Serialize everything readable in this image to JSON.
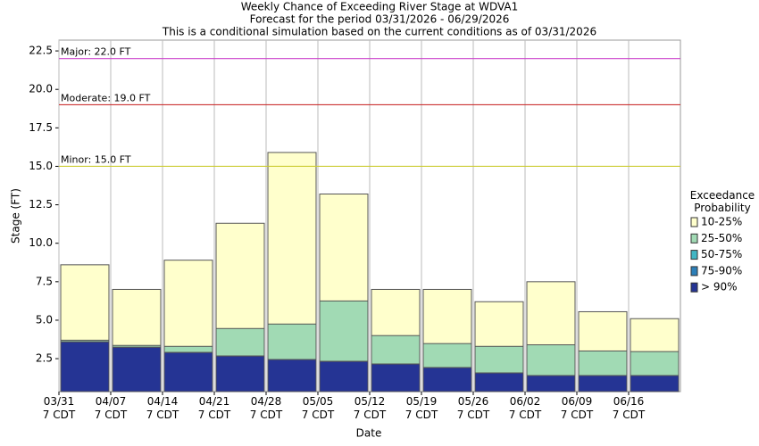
{
  "chart_data": {
    "type": "bar",
    "title": [
      "Weekly Chance of Exceeding River Stage at WDVA1",
      "Forecast for the period 03/31/2026 - 06/29/2026",
      "This is a conditional simulation based on the current conditions as of 03/31/2026"
    ],
    "y_label": "Stage (FT)",
    "x_label": "Date",
    "categories": [
      "03/31\n7 CDT",
      "04/07\n7 CDT",
      "04/14\n7 CDT",
      "04/21\n7 CDT",
      "04/28\n7 CDT",
      "05/05\n7 CDT",
      "05/12\n7 CDT",
      "05/19\n7 CDT",
      "05/26\n7 CDT",
      "06/02\n7 CDT",
      "06/09\n7 CDT",
      "06/16\n7 CDT"
    ],
    "legend_title": "Exceedance\nProbability",
    "legend": "right",
    "grid": true,
    "series": [
      {
        "name": "10-25%",
        "color": "#ffffcc",
        "values": [
          8.6,
          7.0,
          8.9,
          11.3,
          15.9,
          13.2,
          7.0,
          7.0,
          6.2,
          7.5,
          5.55,
          5.1
        ]
      },
      {
        "name": "25-50%",
        "color": "#a1dab4",
        "values": [
          3.7,
          3.36,
          3.3,
          4.46,
          4.75,
          6.25,
          4.0,
          3.48,
          3.3,
          3.4,
          3.0,
          2.96
        ]
      },
      {
        "name": "50-75%",
        "color": "#41b6c4",
        "values": [
          3.59,
          3.24,
          2.9,
          2.67,
          2.44,
          2.32,
          2.15,
          1.92,
          1.57,
          1.4,
          1.4,
          1.4
        ]
      },
      {
        "name": "75-90%",
        "color": "#2c7fb8",
        "values": [
          3.59,
          3.24,
          2.9,
          2.67,
          2.44,
          2.32,
          2.15,
          1.92,
          1.57,
          1.4,
          1.4,
          1.4
        ]
      },
      {
        "name": "> 90%",
        "color": "#253494",
        "values": [
          3.59,
          3.24,
          2.9,
          2.67,
          2.44,
          2.32,
          2.15,
          1.92,
          1.57,
          1.4,
          1.4,
          1.4
        ]
      }
    ],
    "thresholds": [
      {
        "label": "Major: 22.0 FT",
        "value": 22,
        "color": "#cc44cc"
      },
      {
        "label": "Moderate: 19.0 FT",
        "value": 19,
        "color": "#cc3333"
      },
      {
        "label": "Minor: 15.0 FT",
        "value": 15,
        "color": "#cccc33"
      }
    ],
    "ylim": [
      0.36,
      23.2
    ],
    "yticks": [
      2.5,
      {
        "value": 5,
        "label": "5.0"
      },
      7.5,
      {
        "value": 10,
        "label": "10.0"
      },
      12.5,
      {
        "value": 15,
        "label": "15.0"
      },
      17.5,
      {
        "value": 20,
        "label": "20.0"
      },
      22.5
    ]
  }
}
